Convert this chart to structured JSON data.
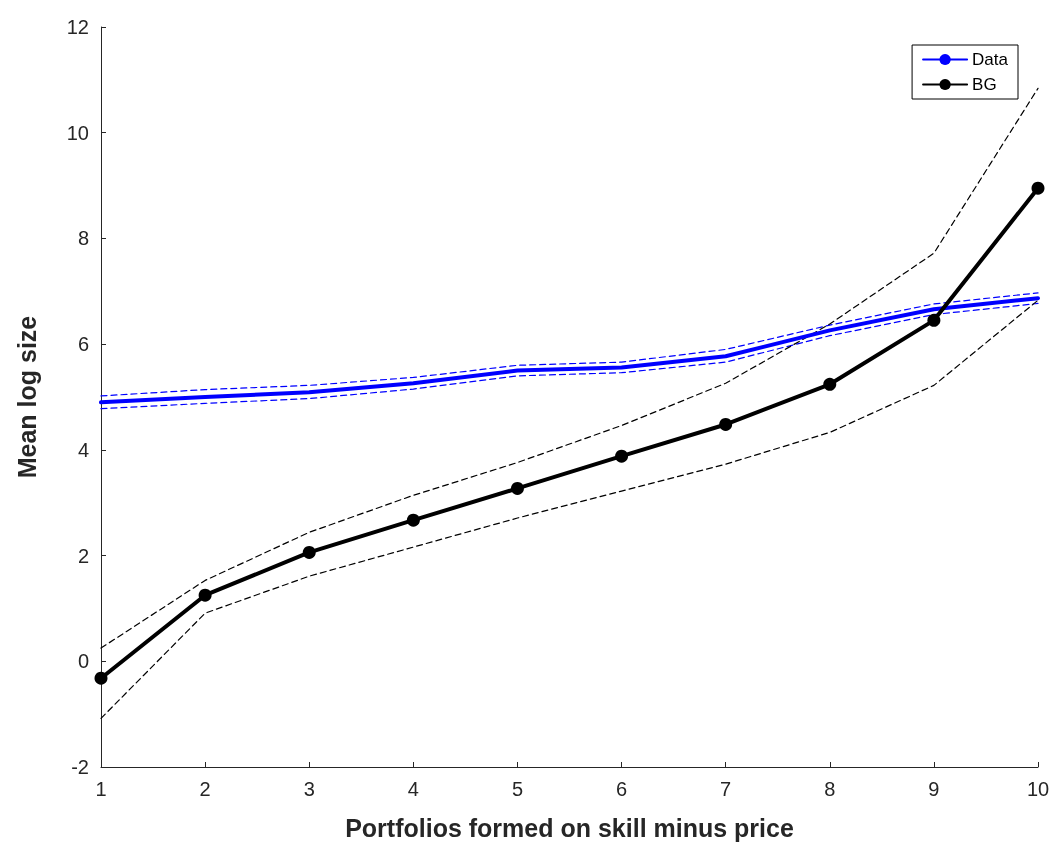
{
  "chart_data": {
    "type": "line",
    "xlabel": "Portfolios formed on skill minus price",
    "ylabel": "Mean log size",
    "x": [
      1,
      2,
      3,
      4,
      5,
      6,
      7,
      8,
      9,
      10
    ],
    "xlim": [
      1,
      10
    ],
    "xticks": [
      1,
      2,
      3,
      4,
      5,
      6,
      7,
      8,
      9,
      10
    ],
    "ylim": [
      -2,
      12
    ],
    "yticks": [
      -2,
      0,
      2,
      4,
      6,
      8,
      10,
      12
    ],
    "grid": false,
    "legend": "top right",
    "series": [
      {
        "name": "Data",
        "color": "#0000ff",
        "marker": "none",
        "line_style": "solid",
        "values": [
          4.9,
          5.0,
          5.09,
          5.26,
          5.5,
          5.56,
          5.77,
          6.26,
          6.66,
          6.87
        ]
      },
      {
        "color": "#0000ff",
        "marker": "none",
        "line_style": "dashed",
        "values": [
          5.02,
          5.14,
          5.22,
          5.37,
          5.6,
          5.66,
          5.9,
          6.36,
          6.76,
          6.97
        ]
      },
      {
        "color": "#0000ff",
        "marker": "none",
        "line_style": "dashed",
        "values": [
          4.78,
          4.88,
          4.97,
          5.15,
          5.4,
          5.46,
          5.66,
          6.16,
          6.56,
          6.77
        ]
      },
      {
        "name": "BG",
        "color": "#000000",
        "marker": "circle",
        "line_style": "solid",
        "values": [
          -0.32,
          1.25,
          2.06,
          2.67,
          3.27,
          3.88,
          4.48,
          5.24,
          6.45,
          8.95
        ]
      },
      {
        "color": "#000000",
        "marker": "none",
        "line_style": "dashed",
        "values": [
          0.25,
          1.53,
          2.44,
          3.14,
          3.76,
          4.46,
          5.26,
          6.38,
          7.72,
          10.84
        ]
      },
      {
        "color": "#000000",
        "marker": "none",
        "line_style": "dashed",
        "values": [
          -1.08,
          0.91,
          1.61,
          2.16,
          2.71,
          3.22,
          3.73,
          4.33,
          5.22,
          6.83
        ]
      }
    ]
  }
}
